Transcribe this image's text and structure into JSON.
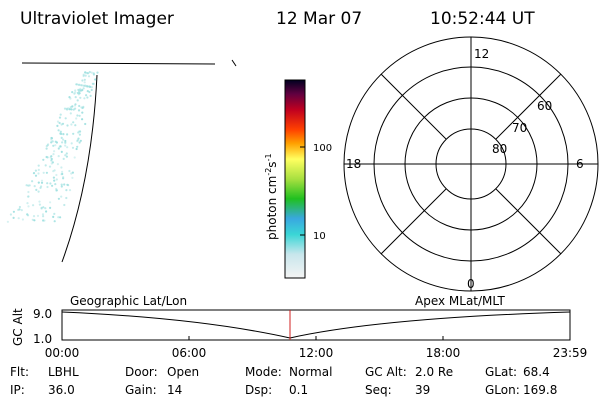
{
  "header": {
    "instrument": "Ultraviolet Imager",
    "date": "12 Mar 07",
    "time": "10:52:44 UT"
  },
  "colorbar": {
    "label_parts": [
      "photon cm",
      "-2",
      "s",
      "-1"
    ],
    "ticks": [
      "100",
      "10"
    ]
  },
  "polar": {
    "mlt_labels": [
      "12",
      "6",
      "0",
      "18"
    ],
    "lat_labels": [
      "60",
      "70",
      "80"
    ]
  },
  "timeline": {
    "left_title": "Geographic Lat/Lon",
    "right_title": "Apex MLat/MLT",
    "y_label": "GC Alt",
    "y_ticks": [
      "9.0",
      "1.0"
    ],
    "x_ticks": [
      "00:00",
      "06:00",
      "12:00",
      "18:00",
      "23:59"
    ]
  },
  "info": {
    "rows": [
      [
        [
          "Flt:",
          "LBHL"
        ],
        [
          "Door:",
          "Open"
        ],
        [
          "Mode:",
          "Normal"
        ],
        [
          "GC Alt:",
          "2.0 Re"
        ],
        [
          "GLat:",
          "68.4"
        ]
      ],
      [
        [
          "IP:",
          "36.0"
        ],
        [
          "Gain:",
          "14"
        ],
        [
          "Dsp:",
          "0.1"
        ],
        [
          "Seq:",
          "39"
        ],
        [
          "GLon:",
          "169.8"
        ]
      ]
    ]
  }
}
